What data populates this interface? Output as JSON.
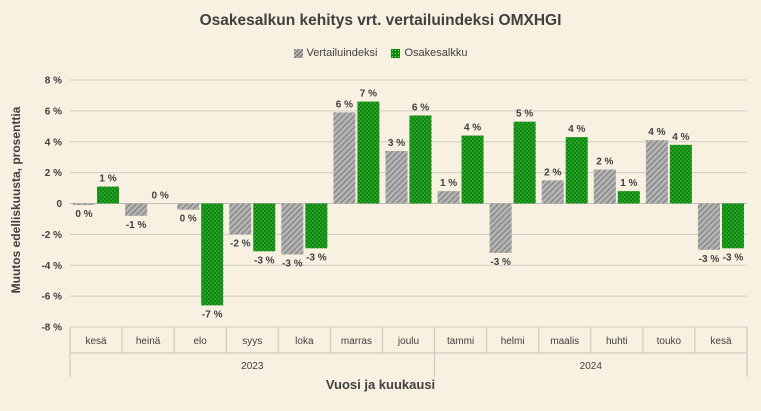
{
  "chart_data": {
    "type": "bar",
    "title": "Osakesalkun kehitys vrt. vertailuindeksi OMXHGI",
    "xlabel": "Vuosi ja kuukausi",
    "ylabel": "Muutos edelliskuusta, prosenttia",
    "ylim": [
      -8,
      8
    ],
    "yticks": [
      "-8 %",
      "-6 %",
      "-4 %",
      "-2 %",
      "0",
      "2 %",
      "4 %",
      "6 %",
      "8 %"
    ],
    "legend_position": "top",
    "categories": [
      "kesä",
      "heinä",
      "elo",
      "syys",
      "loka",
      "marras",
      "joulu",
      "tammi",
      "helmi",
      "maalis",
      "huhti",
      "touko",
      "kesä"
    ],
    "groups": [
      {
        "label": "2023",
        "categories_count": 7
      },
      {
        "label": "2024",
        "categories_count": 6
      }
    ],
    "series": [
      {
        "name": "Vertailuindeksi",
        "color": "#8c8c8c",
        "values": [
          -0.1,
          -0.8,
          -0.4,
          -2.0,
          -3.3,
          5.9,
          3.4,
          0.8,
          -3.2,
          1.5,
          2.2,
          4.1,
          -3.0
        ],
        "labels": [
          "0 %",
          "-1 %",
          "0 %",
          "-2 %",
          "-3 %",
          "6 %",
          "3 %",
          "1 %",
          "-3 %",
          "2 %",
          "2 %",
          "4 %",
          "-3 %"
        ]
      },
      {
        "name": "Osakesalkku",
        "color": "#0b8a0b",
        "values": [
          1.1,
          0.0,
          -6.6,
          -3.1,
          -2.9,
          6.6,
          5.7,
          4.4,
          5.3,
          4.3,
          0.8,
          3.8,
          -2.9
        ],
        "labels": [
          "1 %",
          "0 %",
          "-7 %",
          "-3 %",
          "-3 %",
          "7 %",
          "6 %",
          "4 %",
          "5 %",
          "4 %",
          "1 %",
          "4 %",
          "-3 %"
        ]
      }
    ]
  }
}
